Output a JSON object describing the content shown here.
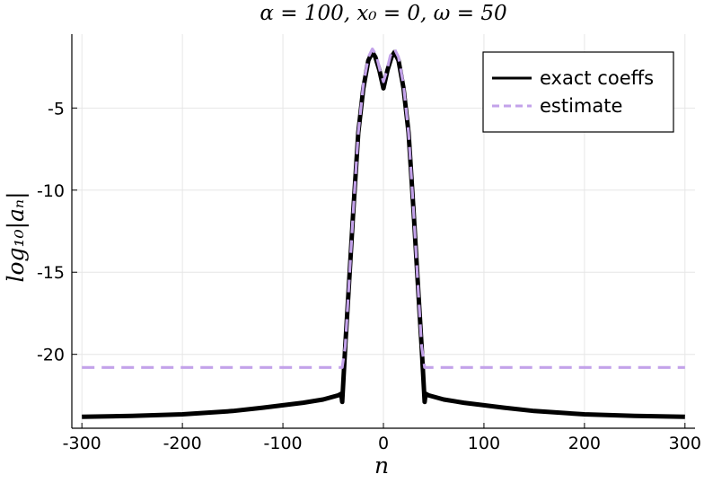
{
  "chart_data": {
    "type": "line",
    "title": "α = 100, x₀ = 0, ω = 50",
    "xlabel": "n",
    "ylabel": "log₁₀|aₙ|",
    "xlim": [
      -310,
      310
    ],
    "ylim": [
      -24.5,
      -0.5
    ],
    "xticks": [
      -300,
      -200,
      -100,
      0,
      100,
      200,
      300
    ],
    "xtick_labels": [
      "-300",
      "-200",
      "-100",
      "0",
      "100",
      "200",
      "300"
    ],
    "yticks": [
      -5,
      -10,
      -15,
      -20
    ],
    "ytick_labels": [
      "-5",
      "-10",
      "-15",
      "-20"
    ],
    "grid": true,
    "legend_position": "top-right",
    "series": [
      {
        "name": "exact coeffs",
        "color": "#000000",
        "style": "solid",
        "points": [
          [
            -300,
            -23.8
          ],
          [
            -250,
            -23.75
          ],
          [
            -200,
            -23.65
          ],
          [
            -150,
            -23.45
          ],
          [
            -120,
            -23.25
          ],
          [
            -100,
            -23.1
          ],
          [
            -80,
            -22.95
          ],
          [
            -60,
            -22.75
          ],
          [
            -45,
            -22.5
          ],
          [
            -42,
            -22.4
          ],
          [
            -41,
            -22.9
          ],
          [
            -38,
            -19.5
          ],
          [
            -35,
            -16.5
          ],
          [
            -30,
            -11.3
          ],
          [
            -25,
            -6.5
          ],
          [
            -20,
            -3.8
          ],
          [
            -15,
            -2.1
          ],
          [
            -11,
            -1.6
          ],
          [
            -8,
            -1.9
          ],
          [
            -4,
            -2.7
          ],
          [
            0,
            -3.8
          ],
          [
            4,
            -2.7
          ],
          [
            8,
            -1.9
          ],
          [
            11,
            -1.6
          ],
          [
            15,
            -2.1
          ],
          [
            20,
            -3.8
          ],
          [
            25,
            -6.5
          ],
          [
            30,
            -11.3
          ],
          [
            35,
            -16.5
          ],
          [
            38,
            -19.5
          ],
          [
            41,
            -22.9
          ],
          [
            42,
            -22.4
          ],
          [
            45,
            -22.5
          ],
          [
            60,
            -22.75
          ],
          [
            80,
            -22.95
          ],
          [
            100,
            -23.1
          ],
          [
            120,
            -23.25
          ],
          [
            150,
            -23.45
          ],
          [
            200,
            -23.65
          ],
          [
            250,
            -23.75
          ],
          [
            300,
            -23.8
          ]
        ]
      },
      {
        "name": "estimate",
        "color": "#c3a2ea",
        "style": "dashed",
        "points": [
          [
            -300,
            -20.8
          ],
          [
            -41,
            -20.8
          ],
          [
            -38,
            -19.5
          ],
          [
            -35,
            -16.5
          ],
          [
            -30,
            -11.3
          ],
          [
            -25,
            -6.5
          ],
          [
            -20,
            -3.6
          ],
          [
            -15,
            -1.9
          ],
          [
            -11,
            -1.4
          ],
          [
            -7,
            -1.8
          ],
          [
            -3,
            -2.8
          ],
          [
            0,
            -3.4
          ],
          [
            3,
            -2.8
          ],
          [
            7,
            -1.8
          ],
          [
            11,
            -1.4
          ],
          [
            15,
            -1.9
          ],
          [
            20,
            -3.6
          ],
          [
            25,
            -6.5
          ],
          [
            30,
            -11.3
          ],
          [
            35,
            -16.5
          ],
          [
            38,
            -19.5
          ],
          [
            41,
            -20.8
          ],
          [
            300,
            -20.8
          ]
        ]
      }
    ]
  }
}
